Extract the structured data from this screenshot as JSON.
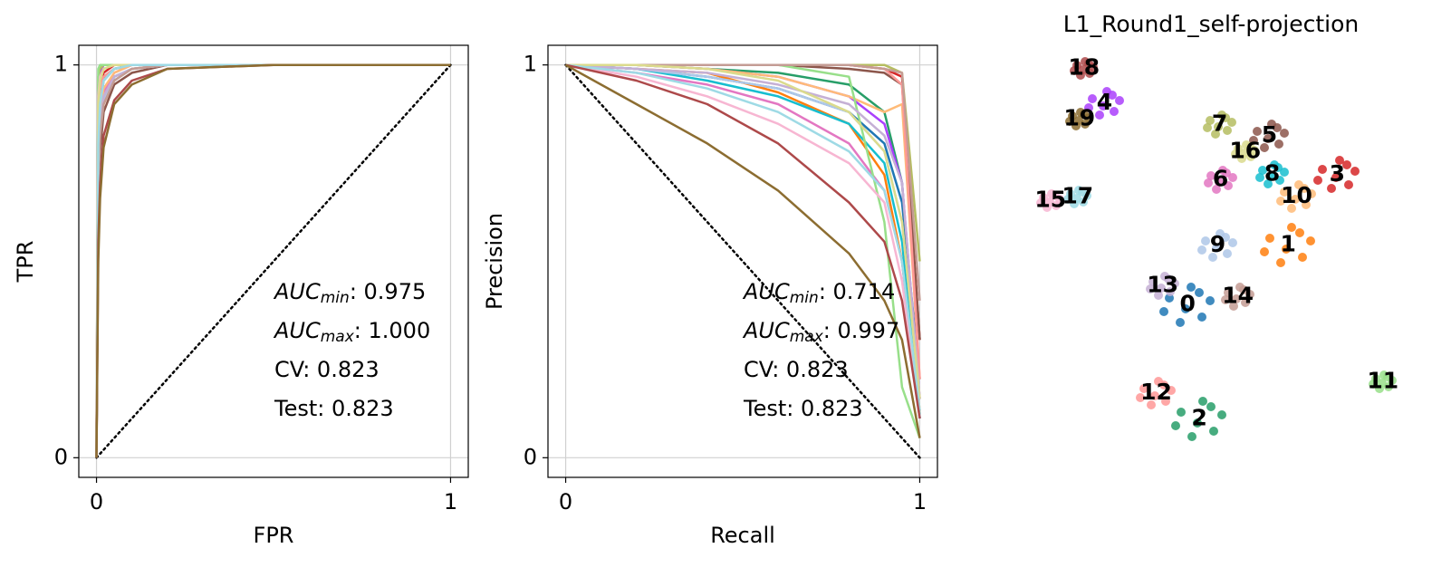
{
  "chart_data": [
    {
      "type": "line",
      "xlabel": "FPR",
      "ylabel": "TPR",
      "xlim": [
        -0.05,
        1.05
      ],
      "ylim": [
        -0.05,
        1.05
      ],
      "xticks": [
        0,
        1
      ],
      "yticks": [
        0,
        1
      ],
      "grid": true,
      "reference_line": {
        "x": [
          0,
          1
        ],
        "y": [
          0,
          1
        ]
      },
      "annotations": [
        {
          "base": "AUC",
          "sub": "min",
          "text": ": 0.975"
        },
        {
          "base": "AUC",
          "sub": "max",
          "text": ": 1.000"
        },
        {
          "text": "CV: 0.823"
        },
        {
          "text": "Test: 0.823"
        }
      ],
      "x": [
        0,
        0.005,
        0.01,
        0.02,
        0.05,
        0.1,
        0.2,
        0.5,
        1
      ],
      "series": [
        {
          "color": "#1f77b4",
          "values": [
            0,
            0.8,
            0.9,
            0.96,
            0.99,
            1,
            1,
            1,
            1
          ]
        },
        {
          "color": "#ff7f0e",
          "values": [
            0,
            0.7,
            0.82,
            0.9,
            0.96,
            0.99,
            1,
            1,
            1
          ]
        },
        {
          "color": "#279e68",
          "values": [
            0,
            0.85,
            0.93,
            0.97,
            0.99,
            1,
            1,
            1,
            1
          ]
        },
        {
          "color": "#d62728",
          "values": [
            0,
            0.9,
            0.95,
            0.98,
            1,
            1,
            1,
            1,
            1
          ]
        },
        {
          "color": "#aa40fc",
          "values": [
            0,
            0.95,
            0.98,
            1,
            1,
            1,
            1,
            1,
            1
          ]
        },
        {
          "color": "#8c564b",
          "values": [
            0,
            0.65,
            0.78,
            0.88,
            0.95,
            0.98,
            1,
            1,
            1
          ]
        },
        {
          "color": "#e377c2",
          "values": [
            0,
            0.75,
            0.86,
            0.93,
            0.98,
            1,
            1,
            1,
            1
          ]
        },
        {
          "color": "#b5bd61",
          "values": [
            0,
            0.97,
            0.99,
            1,
            1,
            1,
            1,
            1,
            1
          ]
        },
        {
          "color": "#17becf",
          "values": [
            0,
            0.72,
            0.84,
            0.91,
            0.97,
            0.99,
            1,
            1,
            1
          ]
        },
        {
          "color": "#aec7e8",
          "values": [
            0,
            0.7,
            0.83,
            0.91,
            0.96,
            0.99,
            1,
            1,
            1
          ]
        },
        {
          "color": "#ffbb78",
          "values": [
            0,
            0.78,
            0.88,
            0.94,
            0.98,
            1,
            1,
            1,
            1
          ]
        },
        {
          "color": "#98df8a",
          "values": [
            0,
            0.99,
            1,
            1,
            1,
            1,
            1,
            1,
            1
          ]
        },
        {
          "color": "#ff9896",
          "values": [
            0,
            0.88,
            0.94,
            0.97,
            0.99,
            1,
            1,
            1,
            1
          ]
        },
        {
          "color": "#c5b0d5",
          "values": [
            0,
            0.74,
            0.85,
            0.92,
            0.97,
            0.99,
            1,
            1,
            1
          ]
        },
        {
          "color": "#c49c94",
          "values": [
            0,
            0.7,
            0.82,
            0.9,
            0.96,
            0.99,
            1,
            1,
            1
          ]
        },
        {
          "color": "#f7b6d2",
          "values": [
            0,
            0.92,
            0.97,
            0.99,
            1,
            1,
            1,
            1,
            1
          ]
        },
        {
          "color": "#dbdb8d",
          "values": [
            0,
            0.9,
            0.96,
            0.99,
            1,
            1,
            1,
            1,
            1
          ]
        },
        {
          "color": "#9edae5",
          "values": [
            0,
            0.8,
            0.9,
            0.96,
            0.99,
            1,
            1,
            1,
            1
          ]
        },
        {
          "color": "#ad494a",
          "values": [
            0,
            0.55,
            0.7,
            0.82,
            0.91,
            0.96,
            0.99,
            1,
            1
          ]
        },
        {
          "color": "#8c6d31",
          "values": [
            0,
            0.5,
            0.66,
            0.79,
            0.9,
            0.95,
            0.99,
            1,
            1
          ]
        }
      ]
    },
    {
      "type": "line",
      "xlabel": "Recall",
      "ylabel": "Precision",
      "xlim": [
        -0.05,
        1.05
      ],
      "ylim": [
        -0.05,
        1.05
      ],
      "xticks": [
        0,
        1
      ],
      "yticks": [
        0,
        1
      ],
      "grid": true,
      "reference_line": {
        "x": [
          0,
          1
        ],
        "y": [
          1,
          0
        ]
      },
      "annotations": [
        {
          "base": "AUC",
          "sub": "min",
          "text": ": 0.714"
        },
        {
          "base": "AUC",
          "sub": "max",
          "text": ": 0.997"
        },
        {
          "text": "CV: 0.823"
        },
        {
          "text": "Test: 0.823"
        }
      ],
      "x": [
        0,
        0.2,
        0.4,
        0.6,
        0.8,
        0.9,
        0.95,
        1
      ],
      "series": [
        {
          "color": "#1f77b4",
          "values": [
            1,
            0.99,
            0.97,
            0.94,
            0.88,
            0.8,
            0.65,
            0.2
          ]
        },
        {
          "color": "#ff7f0e",
          "values": [
            1,
            0.99,
            0.98,
            0.93,
            0.85,
            0.72,
            0.5,
            0.12
          ]
        },
        {
          "color": "#279e68",
          "values": [
            1,
            1,
            0.99,
            0.98,
            0.95,
            0.88,
            0.7,
            0.1
          ]
        },
        {
          "color": "#d62728",
          "values": [
            1,
            1,
            1,
            1,
            1,
            0.99,
            0.97,
            0.3
          ]
        },
        {
          "color": "#aa40fc",
          "values": [
            1,
            1,
            0.99,
            0.97,
            0.92,
            0.85,
            0.7,
            0.15
          ]
        },
        {
          "color": "#8c564b",
          "values": [
            1,
            1,
            1,
            1,
            0.99,
            0.98,
            0.95,
            0.3
          ]
        },
        {
          "color": "#e377c2",
          "values": [
            1,
            0.98,
            0.95,
            0.9,
            0.8,
            0.68,
            0.5,
            0.1
          ]
        },
        {
          "color": "#b5bd61",
          "values": [
            1,
            1,
            1,
            1,
            1,
            1,
            0.98,
            0.5
          ]
        },
        {
          "color": "#17becf",
          "values": [
            1,
            0.99,
            0.96,
            0.92,
            0.85,
            0.75,
            0.55,
            0.1
          ]
        },
        {
          "color": "#aec7e8",
          "values": [
            1,
            0.99,
            0.97,
            0.94,
            0.88,
            0.78,
            0.6,
            0.15
          ]
        },
        {
          "color": "#ffbb78",
          "values": [
            1,
            1,
            0.99,
            0.97,
            0.92,
            0.88,
            0.9,
            0.2
          ]
        },
        {
          "color": "#98df8a",
          "values": [
            1,
            1,
            1,
            1,
            0.97,
            0.6,
            0.18,
            0.05
          ]
        },
        {
          "color": "#ff9896",
          "values": [
            1,
            1,
            1,
            1,
            1,
            0.99,
            0.95,
            0.2
          ]
        },
        {
          "color": "#c5b0d5",
          "values": [
            1,
            0.99,
            0.98,
            0.95,
            0.9,
            0.82,
            0.7,
            0.15
          ]
        },
        {
          "color": "#c49c94",
          "values": [
            1,
            1,
            1,
            1,
            1,
            0.99,
            0.98,
            0.4
          ]
        },
        {
          "color": "#f7b6d2",
          "values": [
            1,
            0.97,
            0.92,
            0.85,
            0.75,
            0.65,
            0.45,
            0.1
          ]
        },
        {
          "color": "#dbdb8d",
          "values": [
            1,
            1,
            0.99,
            0.96,
            0.88,
            0.78,
            0.6,
            0.15
          ]
        },
        {
          "color": "#9edae5",
          "values": [
            1,
            0.98,
            0.94,
            0.88,
            0.78,
            0.68,
            0.5,
            0.12
          ]
        },
        {
          "color": "#ad494a",
          "values": [
            1,
            0.96,
            0.9,
            0.8,
            0.65,
            0.55,
            0.4,
            0.1
          ]
        },
        {
          "color": "#8c6d31",
          "values": [
            1,
            0.9,
            0.8,
            0.68,
            0.52,
            0.4,
            0.3,
            0.05
          ]
        }
      ]
    },
    {
      "type": "scatter",
      "title": "L1_Round1_self-projection",
      "xlim": [
        0,
        400
      ],
      "ylim": [
        0,
        445
      ],
      "series": [
        {
          "name": "0",
          "color": "#1f77b4",
          "x": [
            151,
            187,
            163,
            196,
            175,
            145,
            184,
            169
          ],
          "y": [
            176,
            155,
            149,
            173,
            188,
            161,
            182,
            164
          ]
        },
        {
          "name": "1",
          "color": "#ff7f0e",
          "x": [
            262,
            298,
            274,
            307,
            286,
            256,
            295,
            280
          ],
          "y": [
            242,
            221,
            215,
            239,
            254,
            227,
            248,
            230
          ]
        },
        {
          "name": "2",
          "color": "#279e68",
          "x": [
            164,
            200,
            176,
            209,
            188,
            158,
            197,
            182
          ],
          "y": [
            50,
            29,
            23,
            47,
            62,
            35,
            56,
            38
          ]
        },
        {
          "name": "3",
          "color": "#d62728",
          "x": [
            320,
            349,
            330,
            356,
            339,
            315,
            347,
            335
          ],
          "y": [
            318,
            301,
            297,
            316,
            328,
            306,
            323,
            309
          ]
        },
        {
          "name": "4",
          "color": "#aa40fc",
          "x": [
            66,
            90,
            74,
            96,
            82,
            62,
            88,
            78
          ],
          "y": [
            396,
            382,
            378,
            394,
            404,
            386,
            400,
            388
          ]
        },
        {
          "name": "5",
          "color": "#8c564b",
          "x": [
            248,
            272,
            256,
            278,
            264,
            244,
            270,
            260
          ],
          "y": [
            360,
            346,
            342,
            358,
            368,
            350,
            364,
            352
          ]
        },
        {
          "name": "6",
          "color": "#e377c2",
          "x": [
            197,
            216,
            203,
            221,
            210,
            194,
            214,
            206
          ],
          "y": [
            311,
            300,
            296,
            309,
            317,
            303,
            314,
            304
          ]
        },
        {
          "name": "7",
          "color": "#b5bd61",
          "x": [
            196,
            215,
            202,
            220,
            209,
            193,
            213,
            205
          ],
          "y": [
            372,
            361,
            357,
            370,
            378,
            364,
            375,
            365
          ]
        },
        {
          "name": "8",
          "color": "#17becf",
          "x": [
            254,
            273,
            260,
            278,
            267,
            251,
            271,
            263
          ],
          "y": [
            317,
            306,
            302,
            315,
            323,
            309,
            320,
            310
          ]
        },
        {
          "name": "9",
          "color": "#aec7e8",
          "x": [
            191,
            215,
            199,
            221,
            207,
            187,
            213,
            203
          ],
          "y": [
            239,
            225,
            221,
            237,
            247,
            229,
            243,
            231
          ]
        },
        {
          "name": "10",
          "color": "#ffbb78",
          "x": [
            278,
            302,
            286,
            308,
            294,
            274,
            300,
            290
          ],
          "y": [
            293,
            279,
            275,
            291,
            301,
            283,
            297,
            285
          ]
        },
        {
          "name": "11",
          "color": "#98df8a",
          "x": [
            379,
            393,
            383,
            397,
            388,
            376,
            392,
            386
          ],
          "y": [
            87,
            78,
            76,
            85,
            91,
            81,
            89,
            82
          ]
        },
        {
          "name": "12",
          "color": "#ff9896",
          "x": [
            123,
            147,
            131,
            153,
            139,
            119,
            145,
            135
          ],
          "y": [
            76,
            62,
            58,
            74,
            84,
            66,
            80,
            68
          ]
        },
        {
          "name": "13",
          "color": "#c5b0d5",
          "x": [
            133,
            152,
            139,
            157,
            146,
            130,
            150,
            142
          ],
          "y": [
            194,
            183,
            179,
            192,
            200,
            186,
            197,
            187
          ]
        },
        {
          "name": "14",
          "color": "#c49c94",
          "x": [
            216,
            235,
            222,
            240,
            229,
            213,
            233,
            225
          ],
          "y": [
            182,
            171,
            167,
            180,
            188,
            174,
            185,
            175
          ]
        },
        {
          "name": "15",
          "color": "#f7b6d2",
          "x": [
            12,
            26,
            16,
            30,
            21,
            9,
            25,
            19
          ],
          "y": [
            287,
            278,
            276,
            285,
            291,
            281,
            289,
            282
          ]
        },
        {
          "name": "16",
          "color": "#dbdb8d",
          "x": [
            227,
            241,
            231,
            245,
            236,
            224,
            240,
            234
          ],
          "y": [
            341,
            332,
            330,
            339,
            345,
            335,
            343,
            336
          ]
        },
        {
          "name": "17",
          "color": "#9edae5",
          "x": [
            42,
            56,
            46,
            60,
            51,
            39,
            55,
            49
          ],
          "y": [
            291,
            282,
            280,
            289,
            295,
            285,
            293,
            286
          ]
        },
        {
          "name": "18",
          "color": "#ad494a",
          "x": [
            49,
            63,
            53,
            67,
            58,
            46,
            62,
            56
          ],
          "y": [
            433,
            424,
            422,
            431,
            437,
            427,
            435,
            428
          ]
        },
        {
          "name": "19",
          "color": "#8c6d31",
          "x": [
            44,
            58,
            48,
            62,
            53,
            41,
            57,
            51
          ],
          "y": [
            377,
            368,
            366,
            375,
            381,
            371,
            379,
            372
          ]
        }
      ]
    }
  ]
}
